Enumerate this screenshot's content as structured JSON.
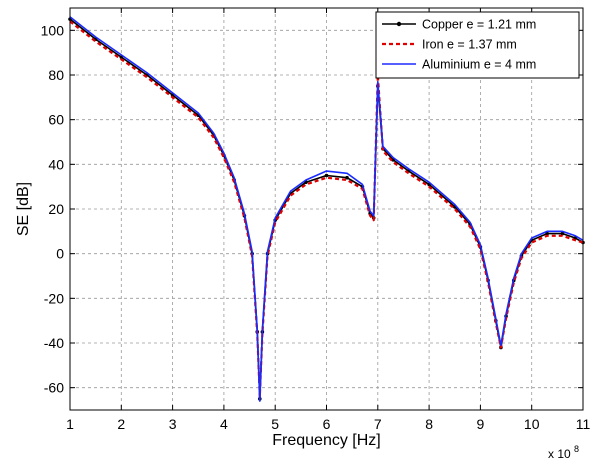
{
  "chart_data": {
    "type": "line",
    "title": "",
    "xlabel": "Frequency [Hz]",
    "ylabel": "SE [dB]",
    "x_multiplier": {
      "base": "x 10",
      "exponent": "8"
    },
    "xlim": [
      1,
      11
    ],
    "ylim": [
      -70,
      110
    ],
    "xticks": [
      1,
      2,
      3,
      4,
      5,
      6,
      7,
      8,
      9,
      10,
      11
    ],
    "yticks": [
      -60,
      -40,
      -20,
      0,
      20,
      40,
      60,
      80,
      100
    ],
    "grid": true,
    "legend_position": "top-right",
    "series": [
      {
        "name": "Copper e = 1.21 mm",
        "color": "#000000",
        "style": "solid-with-dot-markers",
        "points": [
          [
            1,
            105
          ],
          [
            1.5,
            96
          ],
          [
            2,
            88
          ],
          [
            2.5,
            80
          ],
          [
            3,
            71
          ],
          [
            3.5,
            62
          ],
          [
            3.8,
            53
          ],
          [
            4,
            44
          ],
          [
            4.2,
            33
          ],
          [
            4.4,
            17
          ],
          [
            4.55,
            0
          ],
          [
            4.65,
            -35
          ],
          [
            4.7,
            -65
          ],
          [
            4.75,
            -35
          ],
          [
            4.85,
            0
          ],
          [
            5,
            15
          ],
          [
            5.3,
            27
          ],
          [
            5.6,
            32
          ],
          [
            6,
            35
          ],
          [
            6.4,
            34
          ],
          [
            6.7,
            30
          ],
          [
            6.85,
            18
          ],
          [
            6.92,
            16
          ],
          [
            7,
            75
          ],
          [
            7.1,
            47
          ],
          [
            7.3,
            42
          ],
          [
            7.6,
            37
          ],
          [
            8,
            31
          ],
          [
            8.5,
            21
          ],
          [
            8.8,
            13
          ],
          [
            9,
            3
          ],
          [
            9.15,
            -12
          ],
          [
            9.3,
            -30
          ],
          [
            9.4,
            -42
          ],
          [
            9.5,
            -28
          ],
          [
            9.65,
            -12
          ],
          [
            9.8,
            -1
          ],
          [
            10,
            6
          ],
          [
            10.3,
            9
          ],
          [
            10.6,
            9
          ],
          [
            10.85,
            7
          ],
          [
            11,
            5
          ]
        ]
      },
      {
        "name": "Iron e = 1.37 mm",
        "color": "#e00000",
        "style": "dashed",
        "points": [
          [
            1,
            104
          ],
          [
            1.5,
            95
          ],
          [
            2,
            87
          ],
          [
            2.5,
            79
          ],
          [
            3,
            70
          ],
          [
            3.5,
            61
          ],
          [
            3.8,
            52
          ],
          [
            4,
            43
          ],
          [
            4.2,
            32
          ],
          [
            4.4,
            16
          ],
          [
            4.55,
            -1
          ],
          [
            4.65,
            -36
          ],
          [
            4.7,
            -64
          ],
          [
            4.75,
            -36
          ],
          [
            4.85,
            -1
          ],
          [
            5,
            14
          ],
          [
            5.3,
            26
          ],
          [
            5.6,
            31
          ],
          [
            6,
            34
          ],
          [
            6.4,
            33
          ],
          [
            6.7,
            29
          ],
          [
            6.85,
            17
          ],
          [
            6.92,
            15
          ],
          [
            7,
            80
          ],
          [
            7.1,
            46
          ],
          [
            7.3,
            41
          ],
          [
            7.6,
            36
          ],
          [
            8,
            30
          ],
          [
            8.5,
            20
          ],
          [
            8.8,
            12
          ],
          [
            9,
            2
          ],
          [
            9.15,
            -13
          ],
          [
            9.3,
            -31
          ],
          [
            9.4,
            -42
          ],
          [
            9.5,
            -29
          ],
          [
            9.65,
            -13
          ],
          [
            9.8,
            -2
          ],
          [
            10,
            5
          ],
          [
            10.3,
            8
          ],
          [
            10.6,
            8
          ],
          [
            10.85,
            6
          ],
          [
            11,
            5
          ]
        ]
      },
      {
        "name": "Aluminium e = 4 mm",
        "color": "#1a2bff",
        "style": "solid",
        "points": [
          [
            1,
            106
          ],
          [
            1.5,
            97
          ],
          [
            2,
            89
          ],
          [
            2.5,
            81
          ],
          [
            3,
            72
          ],
          [
            3.5,
            63
          ],
          [
            3.8,
            54
          ],
          [
            4,
            45
          ],
          [
            4.2,
            34
          ],
          [
            4.4,
            18
          ],
          [
            4.55,
            1
          ],
          [
            4.65,
            -34
          ],
          [
            4.7,
            -66
          ],
          [
            4.75,
            -34
          ],
          [
            4.85,
            1
          ],
          [
            5,
            16
          ],
          [
            5.3,
            28
          ],
          [
            5.6,
            33
          ],
          [
            6,
            37
          ],
          [
            6.4,
            36
          ],
          [
            6.7,
            31
          ],
          [
            6.85,
            19
          ],
          [
            6.92,
            17
          ],
          [
            7,
            77
          ],
          [
            7.1,
            48
          ],
          [
            7.3,
            43
          ],
          [
            7.6,
            38
          ],
          [
            8,
            32
          ],
          [
            8.5,
            22
          ],
          [
            8.8,
            14
          ],
          [
            9,
            4
          ],
          [
            9.15,
            -11
          ],
          [
            9.3,
            -29
          ],
          [
            9.4,
            -41
          ],
          [
            9.5,
            -27
          ],
          [
            9.65,
            -11
          ],
          [
            9.8,
            0
          ],
          [
            10,
            7
          ],
          [
            10.3,
            10
          ],
          [
            10.6,
            10
          ],
          [
            10.85,
            8
          ],
          [
            11,
            6
          ]
        ]
      }
    ]
  }
}
